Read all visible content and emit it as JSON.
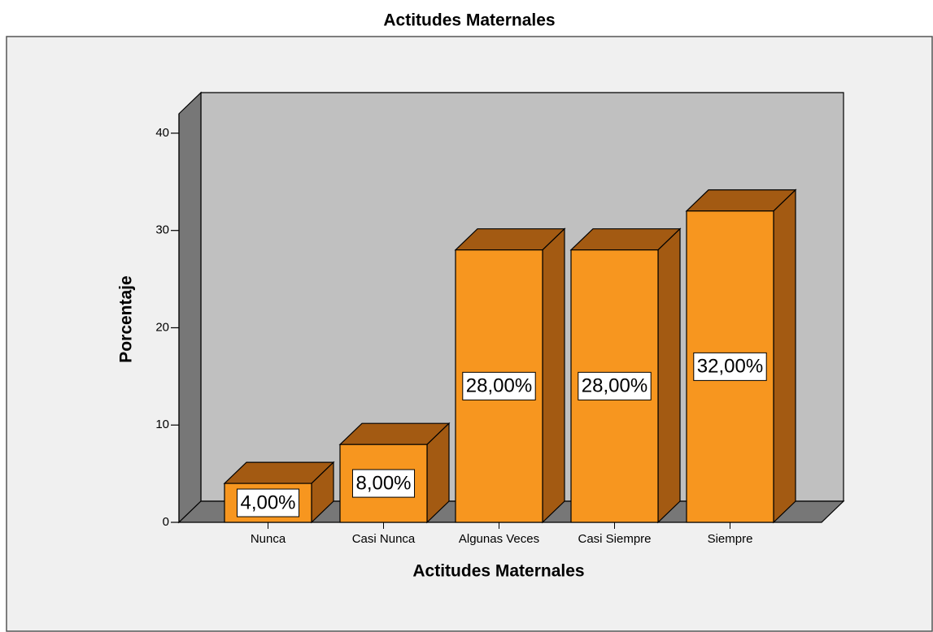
{
  "chart_data": {
    "type": "bar3d",
    "title": "Actitudes Maternales",
    "x_label": "Actitudes Maternales",
    "y_label": "Porcentaje",
    "categories": [
      "Nunca",
      "Casi Nunca",
      "Algunas Veces",
      "Casi Siempre",
      "Siempre"
    ],
    "values": [
      4,
      8,
      28,
      28,
      32
    ],
    "value_labels": [
      "4,00%",
      "8,00%",
      "28,00%",
      "28,00%",
      "32,00%"
    ],
    "color": "#f7961f",
    "ylim": [
      0,
      42
    ],
    "yticks": [
      0,
      10,
      20,
      30,
      40
    ]
  }
}
